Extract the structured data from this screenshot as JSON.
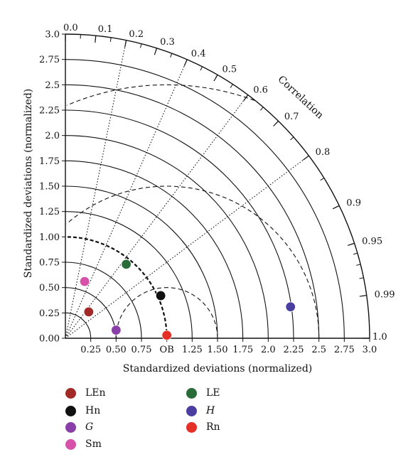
{
  "chart_data": {
    "type": "scatter",
    "subtype": "taylor-diagram",
    "x_axis_title": "Standardized deviations (normalized)",
    "y_axis_title": "Standardized deviations (normalized)",
    "correlation_title": "Correlation",
    "std_range": [
      0,
      3.0
    ],
    "x_ticks": [
      {
        "value": 0.25,
        "label": "0.25"
      },
      {
        "value": 0.5,
        "label": "0.50"
      },
      {
        "value": 0.75,
        "label": "0.75"
      },
      {
        "value": 1.0,
        "label": "OB"
      },
      {
        "value": 1.25,
        "label": "1.25"
      },
      {
        "value": 1.5,
        "label": "1.50"
      },
      {
        "value": 1.75,
        "label": "1.75"
      },
      {
        "value": 2.0,
        "label": "2.0"
      },
      {
        "value": 2.25,
        "label": "2.25"
      },
      {
        "value": 2.5,
        "label": "2.5"
      },
      {
        "value": 2.75,
        "label": "2.75"
      },
      {
        "value": 3.0,
        "label": "3.0"
      }
    ],
    "y_ticks": [
      "0.00",
      "0.25",
      "0.50",
      "0.75",
      "1.00",
      "1.25",
      "1.50",
      "1.75",
      "2.0",
      "2.25",
      "2.5",
      "2.75",
      "3.0"
    ],
    "correlation_ticks": [
      {
        "value": 0.0,
        "label": "0.0"
      },
      {
        "value": 0.1,
        "label": "0.1"
      },
      {
        "value": 0.2,
        "label": "0.2"
      },
      {
        "value": 0.3,
        "label": "0.3"
      },
      {
        "value": 0.4,
        "label": "0.4"
      },
      {
        "value": 0.5,
        "label": "0.5"
      },
      {
        "value": 0.6,
        "label": "0.6"
      },
      {
        "value": 0.7,
        "label": "0.7"
      },
      {
        "value": 0.8,
        "label": "0.8"
      },
      {
        "value": 0.9,
        "label": "0.9"
      },
      {
        "value": 0.95,
        "label": "0.95"
      },
      {
        "value": 0.99,
        "label": "0.99"
      },
      {
        "value": 1.0,
        "label": "1.0"
      }
    ],
    "std_arcs": [
      0.25,
      0.5,
      0.75,
      1.25,
      1.5,
      1.75,
      2.0,
      2.25,
      2.5,
      2.75,
      3.0
    ],
    "observed_std_arc": 1.0,
    "rmsd_arcs": [
      0.5,
      1.5,
      2.5
    ],
    "correlation_lines": [
      0.2,
      0.4,
      0.6,
      0.8
    ],
    "series": [
      {
        "name": "LEn",
        "x": 0.23,
        "y": 0.26,
        "color": "#a12a28"
      },
      {
        "name": "Hn",
        "x": 0.94,
        "y": 0.42,
        "color": "#111111"
      },
      {
        "name": "G",
        "x": 0.5,
        "y": 0.08,
        "color": "#8a3fa8"
      },
      {
        "name": "Sm",
        "x": 0.19,
        "y": 0.56,
        "color": "#d552a8"
      },
      {
        "name": "LE",
        "x": 0.6,
        "y": 0.73,
        "color": "#2a6b3a"
      },
      {
        "name": "H",
        "x": 2.22,
        "y": 0.31,
        "color": "#4a3fa0"
      },
      {
        "name": "Rn",
        "x": 1.0,
        "y": 0.03,
        "color": "#e53028"
      }
    ]
  },
  "legend": [
    {
      "name": "LEn",
      "color": "#a12a28",
      "italic": false
    },
    {
      "name": "Hn",
      "color": "#111111",
      "italic": false
    },
    {
      "name": "G",
      "color": "#8a3fa8",
      "italic": true
    },
    {
      "name": "Sm",
      "color": "#d552a8",
      "italic": false
    },
    {
      "name": "LE",
      "color": "#2a6b3a",
      "italic": false
    },
    {
      "name": "H",
      "color": "#4a3fa0",
      "italic": true
    },
    {
      "name": "Rn",
      "color": "#e53028",
      "italic": false
    }
  ]
}
